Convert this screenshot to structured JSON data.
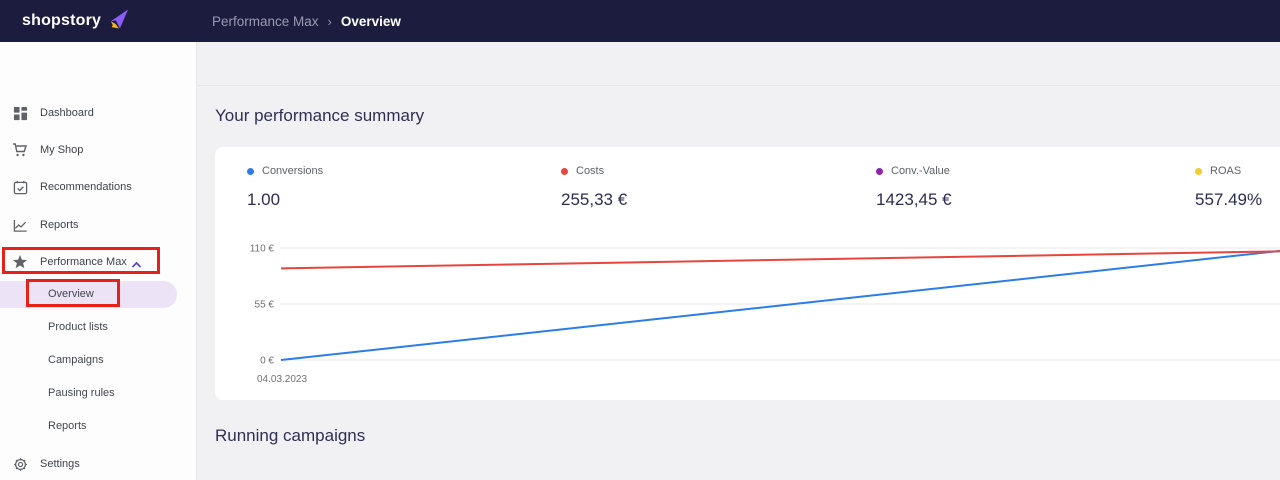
{
  "header": {
    "logo_text": "shopstory",
    "breadcrumb": {
      "parent": "Performance Max",
      "separator": "›",
      "current": "Overview"
    }
  },
  "sidebar": {
    "items": [
      {
        "icon": "dashboard-icon",
        "label": "Dashboard"
      },
      {
        "icon": "cart-icon",
        "label": "My Shop"
      },
      {
        "icon": "calendar-check-icon",
        "label": "Recommendations"
      },
      {
        "icon": "chart-icon",
        "label": "Reports"
      },
      {
        "icon": "star-icon",
        "label": "Performance Max",
        "expanded": true
      }
    ],
    "performance_max_submenu": [
      {
        "label": "Overview",
        "active": true
      },
      {
        "label": "Product lists",
        "active": false
      },
      {
        "label": "Campaigns",
        "active": false
      },
      {
        "label": "Pausing rules",
        "active": false
      },
      {
        "label": "Reports",
        "active": false
      }
    ],
    "footer_item": {
      "icon": "gear-icon",
      "label": "Settings"
    }
  },
  "main": {
    "summary_title": "Your performance summary",
    "running_title": "Running campaigns",
    "kpis": [
      {
        "label": "Conversions",
        "value": "1.00",
        "color": "#2b7de9"
      },
      {
        "label": "Costs",
        "value": "255,33 €",
        "color": "#e8453c"
      },
      {
        "label": "Conv.-Value",
        "value": "1423,45 €",
        "color": "#8e24aa"
      },
      {
        "label": "ROAS",
        "value": "557.49%",
        "color": "#f0cf2a"
      }
    ]
  },
  "chart_data": {
    "type": "line",
    "title": "",
    "xlabel": "",
    "ylabel": "",
    "x_tick_labels": [
      "04.03.2023"
    ],
    "ylim": [
      0,
      110
    ],
    "y_ticks": [
      {
        "value": 0,
        "label": "0 €"
      },
      {
        "value": 55,
        "label": "55 €"
      },
      {
        "value": 110,
        "label": "110 €"
      }
    ],
    "grid": "horizontal",
    "legend_position": "none",
    "series": [
      {
        "name": "Conversions",
        "color": "#2b7de9",
        "values": [
          0,
          109
        ]
      },
      {
        "name": "Costs",
        "color": "#e8453c",
        "values": [
          90,
          107
        ]
      }
    ]
  },
  "annotations": {
    "highlighted_items": [
      "Performance Max",
      "Overview"
    ],
    "highlight_color": "#e8201a"
  }
}
